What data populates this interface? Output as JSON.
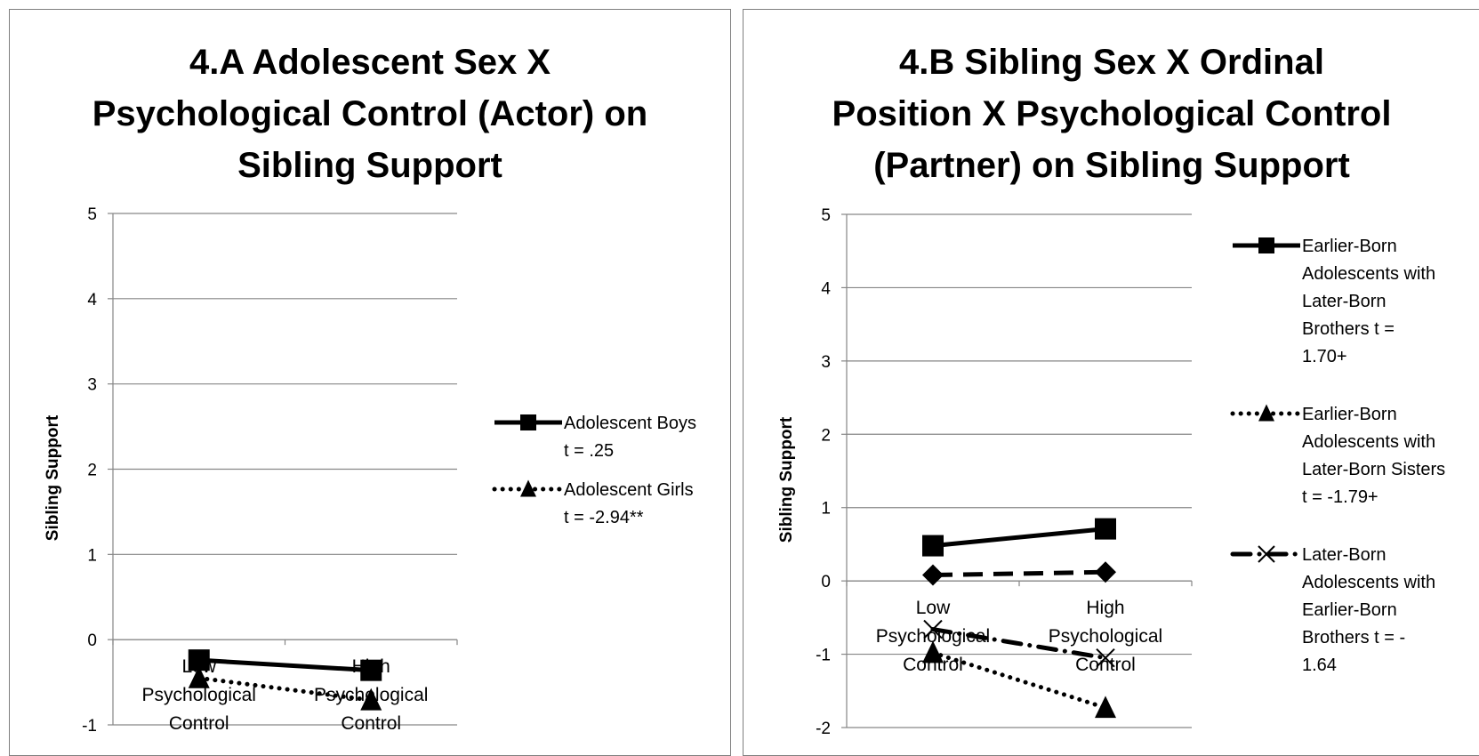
{
  "chart_data": [
    {
      "type": "line",
      "title_lines": [
        "4.A Adolescent Sex X",
        "Psychological Control (Actor) on",
        "Sibling Support"
      ],
      "ylabel": "Sibling Support",
      "xlabel": "",
      "ylim": [
        -1,
        5
      ],
      "yticks": [
        "5",
        "4",
        "3",
        "2",
        "1",
        "0",
        "-1"
      ],
      "categories": [
        [
          "Low",
          "Psychological",
          "Control"
        ],
        [
          "High",
          "Psychological",
          "Control"
        ]
      ],
      "grid": true,
      "legend_position": "right",
      "series": [
        {
          "name": "Adolescent Boys",
          "legend_lines": [
            "Adolescent Boys",
            "t = .25"
          ],
          "values": [
            -0.24,
            -0.36
          ],
          "style": "solid",
          "marker": "square",
          "color": "#000000"
        },
        {
          "name": "Adolescent Girls",
          "legend_lines": [
            "Adolescent Girls",
            "t = -2.94**"
          ],
          "values": [
            -0.45,
            -0.71
          ],
          "style": "dotted",
          "marker": "triangle",
          "color": "#000000"
        }
      ]
    },
    {
      "type": "line",
      "title_lines": [
        "4.B Sibling Sex X Ordinal",
        "Position X Psychological Control",
        "(Partner) on Sibling Support"
      ],
      "ylabel": "Sibling Support",
      "xlabel": "",
      "ylim": [
        -2,
        5
      ],
      "yticks": [
        "5",
        "4",
        "3",
        "2",
        "1",
        "0",
        "-1",
        "-2"
      ],
      "categories": [
        [
          "Low",
          "Psychological",
          "Control"
        ],
        [
          "High",
          "Psychological",
          "Control"
        ]
      ],
      "grid": true,
      "legend_position": "right",
      "series": [
        {
          "name": "Earlier-Born Adolescents with Later-Born Brothers",
          "legend_lines": [
            "Earlier-Born",
            "Adolescents with",
            "Later-Born",
            "Brothers    t =",
            "1.70+"
          ],
          "values": [
            0.48,
            0.71
          ],
          "style": "solid",
          "marker": "square",
          "color": "#000000"
        },
        {
          "name": "Earlier-Born Adolescents with Later-Born Sisters",
          "legend_lines": [
            "Earlier-Born",
            "Adolescents with",
            "Later-Born Sisters",
            "t = -1.79+"
          ],
          "values": [
            -0.98,
            -1.73
          ],
          "style": "dotted",
          "marker": "triangle",
          "color": "#000000"
        },
        {
          "name": "Later-Born Adolescents with Earlier-Born Brothers",
          "legend_lines": [
            "Later-Born",
            "Adolescents with",
            "Earlier-Born",
            "Brothers  t = -",
            "1.64"
          ],
          "values": [
            -0.66,
            -1.05
          ],
          "style": "dashdot",
          "marker": "x",
          "color": "#000000"
        },
        {
          "name": "",
          "legend_lines": [],
          "values": [
            0.08,
            0.12
          ],
          "style": "dashed",
          "marker": "diamond",
          "color": "#000000"
        }
      ]
    }
  ]
}
